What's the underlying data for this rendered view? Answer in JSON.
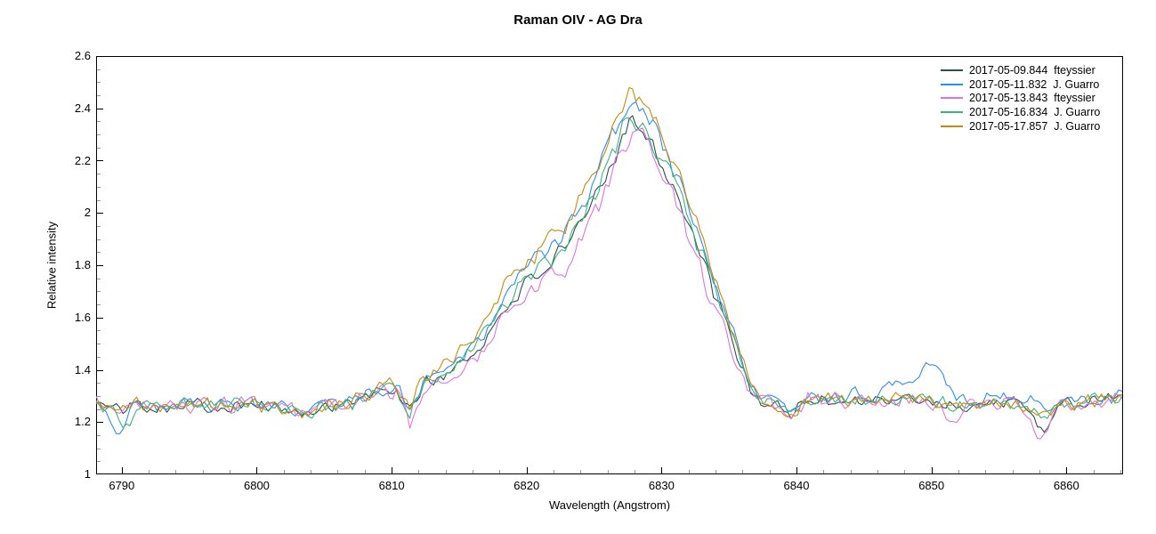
{
  "chart_data": {
    "type": "line",
    "title": "Raman OIV - AG Dra",
    "xlabel": "Wavelength (Angstrom)",
    "ylabel": "Relative intensity",
    "xlim": [
      6788.1,
      6864.2
    ],
    "ylim": [
      1,
      2.6
    ],
    "x_major_ticks": [
      6790,
      6800,
      6810,
      6820,
      6830,
      6840,
      6850,
      6860
    ],
    "x_minor_step": 2,
    "y_major_ticks": [
      1,
      1.2,
      1.4,
      1.6,
      1.8,
      2,
      2.2,
      2.4,
      2.6
    ],
    "y_tick_labels": [
      "1",
      "1.2",
      "1.4",
      "1.6",
      "1.8",
      "2",
      "2.2",
      "2.4",
      "2.6"
    ],
    "y_minor_step": 0.05,
    "grid": false,
    "legend_position": "top-right",
    "background_color": "#ffffff",
    "axis_color": "#000000",
    "minor_tick_color": "#999999",
    "sample_step": 0.25,
    "peak_wavelength": 6827.6,
    "baseline_level": 1.28,
    "baseline_points": [
      [
        6788.1,
        1.27
      ],
      [
        6789.6,
        1.25
      ],
      [
        6791,
        1.27
      ],
      [
        6793,
        1.26
      ],
      [
        6795,
        1.27
      ],
      [
        6797,
        1.26
      ],
      [
        6799,
        1.27
      ],
      [
        6801,
        1.26
      ],
      [
        6802.5,
        1.24
      ],
      [
        6803.5,
        1.22
      ],
      [
        6804.5,
        1.26
      ],
      [
        6806,
        1.27
      ],
      [
        6807.5,
        1.27
      ],
      [
        6809,
        1.29
      ],
      [
        6810.4,
        1.29
      ],
      [
        6811.3,
        1.19
      ],
      [
        6812.3,
        1.29
      ],
      [
        6814,
        1.28
      ],
      [
        6818,
        1.28
      ],
      [
        6824,
        1.28
      ],
      [
        6830,
        1.28
      ],
      [
        6835,
        1.28
      ],
      [
        6836.8,
        1.24
      ],
      [
        6838,
        1.26
      ],
      [
        6839.6,
        1.23
      ],
      [
        6841,
        1.29
      ],
      [
        6843,
        1.28
      ],
      [
        6845,
        1.29
      ],
      [
        6847,
        1.28
      ],
      [
        6849,
        1.29
      ],
      [
        6851,
        1.27
      ],
      [
        6853,
        1.26
      ],
      [
        6855,
        1.28
      ],
      [
        6857,
        1.26
      ],
      [
        6858.5,
        1.23
      ],
      [
        6860,
        1.27
      ],
      [
        6862,
        1.28
      ],
      [
        6864.2,
        1.3
      ]
    ],
    "bump_profile_points": [
      [
        6788.1,
        0
      ],
      [
        6806,
        0
      ],
      [
        6808,
        0.01
      ],
      [
        6810,
        0.03
      ],
      [
        6811,
        0.035
      ],
      [
        6812,
        0.045
      ],
      [
        6813,
        0.065
      ],
      [
        6814,
        0.095
      ],
      [
        6815,
        0.125
      ],
      [
        6816,
        0.165
      ],
      [
        6817,
        0.22
      ],
      [
        6818,
        0.3
      ],
      [
        6819,
        0.37
      ],
      [
        6820,
        0.41
      ],
      [
        6821,
        0.46
      ],
      [
        6822,
        0.5
      ],
      [
        6823,
        0.53
      ],
      [
        6824,
        0.62
      ],
      [
        6825,
        0.71
      ],
      [
        6826,
        0.81
      ],
      [
        6827,
        0.94
      ],
      [
        6827.6,
        1.0
      ],
      [
        6828.6,
        0.97
      ],
      [
        6829.5,
        0.9
      ],
      [
        6830.5,
        0.8
      ],
      [
        6831.5,
        0.69
      ],
      [
        6832.5,
        0.56
      ],
      [
        6833.5,
        0.43
      ],
      [
        6834.5,
        0.3
      ],
      [
        6835.5,
        0.18
      ],
      [
        6836.5,
        0.08
      ],
      [
        6837.5,
        0.02
      ],
      [
        6839,
        0
      ],
      [
        6864.2,
        0
      ]
    ],
    "series": [
      {
        "label": "2017-05-09.844  fteyssier",
        "color": "#2F4F4F",
        "peak_intensity": 2.36,
        "amplitude": 1.08,
        "width_exp": 1.0,
        "noise_amp": 0.034,
        "seed": 101,
        "features": [
          [
            6858.4,
            0.6,
            -0.07
          ]
        ]
      },
      {
        "label": "2017-05-11.832  J. Guarro",
        "color": "#2E8DF0",
        "peak_intensity": 2.43,
        "amplitude": 1.15,
        "width_exp": 0.93,
        "noise_amp": 0.036,
        "seed": 202,
        "features": [
          [
            6850.0,
            0.9,
            0.12
          ],
          [
            6847.3,
            0.5,
            0.05
          ],
          [
            6852,
            6,
            0.03
          ],
          [
            6789.7,
            0.45,
            -0.09
          ]
        ]
      },
      {
        "label": "2017-05-13.843  fteyssier",
        "color": "#E273DC",
        "peak_intensity": 2.3,
        "amplitude": 1.02,
        "width_exp": 1.06,
        "noise_amp": 0.04,
        "seed": 303,
        "features": [
          [
            6851.6,
            0.5,
            -0.09
          ],
          [
            6858.0,
            0.6,
            -0.08
          ],
          [
            6811.5,
            0.4,
            -0.03
          ]
        ]
      },
      {
        "label": "2017-05-16.834  J. Guarro",
        "color": "#3CB37D",
        "peak_intensity": 2.36,
        "amplitude": 1.08,
        "width_exp": 0.95,
        "noise_amp": 0.034,
        "seed": 404,
        "features": [
          [
            6790.4,
            0.45,
            -0.08
          ]
        ]
      },
      {
        "label": "2017-05-17.857  J. Guarro",
        "color": "#C8890E",
        "peak_intensity": 2.46,
        "amplitude": 1.18,
        "width_exp": 0.9,
        "noise_amp": 0.034,
        "seed": 505,
        "features": []
      }
    ]
  }
}
